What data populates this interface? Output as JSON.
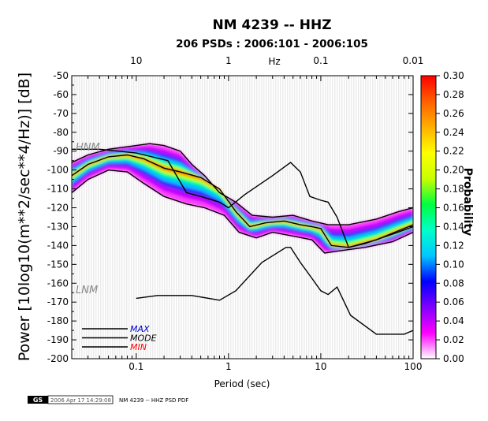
{
  "title": "NM 4239 -- HHZ",
  "subtitle": "206 PSDs : 2006:101 - 2006:105",
  "footer": {
    "logo_text": "GS",
    "timestamp": "2006 Apr 17 14:29:08",
    "caption": "NM 4239 -- HHZ PSD PDF"
  },
  "chart_data": {
    "type": "heatmap",
    "title": "NM 4239 -- HHZ",
    "subtitle": "206 PSDs : 2006:101 - 2006:105",
    "xlabel": "Period (sec)",
    "ylabel": "Power [10log10(m**2/sec**4/Hz)] [dB]",
    "x_scale": "log",
    "xlim": [
      0.02,
      100
    ],
    "ylim": [
      -200,
      -50
    ],
    "x_ticks": [
      {
        "value": 0.1,
        "label": "0.1"
      },
      {
        "value": 1,
        "label": "1"
      },
      {
        "value": 10,
        "label": "10"
      },
      {
        "value": 100,
        "label": "100"
      }
    ],
    "y_ticks": [
      -50,
      -60,
      -70,
      -80,
      -90,
      -100,
      -110,
      -120,
      -130,
      -140,
      -150,
      -160,
      -170,
      -180,
      -190,
      -200
    ],
    "top_axis": {
      "label": "Hz",
      "ticks": [
        {
          "value": 0.1,
          "label": "10"
        },
        {
          "value": 1,
          "label": "1"
        },
        {
          "value": 10,
          "label": "0.1"
        },
        {
          "value": 100,
          "label": "0.01"
        }
      ]
    },
    "colorbar": {
      "label": "Probability",
      "min": 0,
      "max": 0.3,
      "ticks": [
        "0.30",
        "0.28",
        "0.26",
        "0.24",
        "0.22",
        "0.20",
        "0.18",
        "0.16",
        "0.14",
        "0.12",
        "0.10",
        "0.08",
        "0.06",
        "0.04",
        "0.02",
        "0.00"
      ],
      "colors": [
        "#ffffff",
        "#ff00ff",
        "#8000ff",
        "#0000ff",
        "#00c8ff",
        "#00ffc8",
        "#00ff40",
        "#c8ff00",
        "#ffff00",
        "#ffb000",
        "#ff6000",
        "#ff0000"
      ]
    },
    "series": [
      {
        "name": "MAX",
        "color": "#000000",
        "label_color": "#0000cc",
        "points": [
          [
            0.02,
            -96
          ],
          [
            0.03,
            -92
          ],
          [
            0.05,
            -89
          ],
          [
            0.1,
            -87
          ],
          [
            0.14,
            -86
          ],
          [
            0.2,
            -87
          ],
          [
            0.3,
            -90
          ],
          [
            0.4,
            -97
          ],
          [
            0.55,
            -103
          ],
          [
            0.8,
            -112
          ],
          [
            1.2,
            -117
          ],
          [
            1.8,
            -124
          ],
          [
            3,
            -125
          ],
          [
            5,
            -124
          ],
          [
            8,
            -127
          ],
          [
            12,
            -129
          ],
          [
            20,
            -129
          ],
          [
            40,
            -126
          ],
          [
            70,
            -122
          ],
          [
            100,
            -120
          ]
        ]
      },
      {
        "name": "MODE",
        "color": "#000000",
        "label_color": "#000000",
        "points": [
          [
            0.02,
            -103
          ],
          [
            0.03,
            -97
          ],
          [
            0.05,
            -93
          ],
          [
            0.08,
            -92
          ],
          [
            0.12,
            -94
          ],
          [
            0.2,
            -99
          ],
          [
            0.3,
            -101
          ],
          [
            0.5,
            -104
          ],
          [
            0.8,
            -110
          ],
          [
            1.2,
            -122
          ],
          [
            1.7,
            -130
          ],
          [
            2.5,
            -128
          ],
          [
            4,
            -127
          ],
          [
            6,
            -129
          ],
          [
            8,
            -130
          ],
          [
            10,
            -131
          ],
          [
            13,
            -140
          ],
          [
            20,
            -141
          ],
          [
            40,
            -137
          ],
          [
            100,
            -129
          ]
        ]
      },
      {
        "name": "MIN",
        "color": "#000000",
        "label_color": "#ff0000",
        "points": [
          [
            0.02,
            -112
          ],
          [
            0.03,
            -105
          ],
          [
            0.05,
            -100
          ],
          [
            0.08,
            -101
          ],
          [
            0.12,
            -107
          ],
          [
            0.2,
            -114
          ],
          [
            0.35,
            -118
          ],
          [
            0.55,
            -120
          ],
          [
            0.9,
            -124
          ],
          [
            1.3,
            -133
          ],
          [
            2,
            -136
          ],
          [
            3,
            -133
          ],
          [
            5,
            -135
          ],
          [
            8,
            -137
          ],
          [
            11,
            -144
          ],
          [
            15,
            -143
          ],
          [
            30,
            -141
          ],
          [
            60,
            -138
          ],
          [
            100,
            -133
          ]
        ]
      }
    ],
    "reference_curves": [
      {
        "name": "HNM",
        "color": "#000000",
        "label_color": "#888888",
        "points": [
          [
            0.02,
            -89
          ],
          [
            0.04,
            -89
          ],
          [
            0.1,
            -91
          ],
          [
            0.22,
            -95
          ],
          [
            0.35,
            -112
          ],
          [
            0.5,
            -114
          ],
          [
            0.8,
            -117
          ],
          [
            1.0,
            -120
          ],
          [
            1.5,
            -113
          ],
          [
            3.0,
            -103
          ],
          [
            4.7,
            -96
          ],
          [
            6.0,
            -101
          ],
          [
            7.6,
            -114
          ],
          [
            10,
            -116
          ],
          [
            12,
            -117
          ],
          [
            15,
            -125
          ],
          [
            20,
            -141
          ],
          [
            30,
            -139
          ],
          [
            60,
            -134
          ],
          [
            100,
            -130
          ]
        ]
      },
      {
        "name": "LNM",
        "color": "#000000",
        "label_color": "#888888",
        "points": [
          [
            0.1,
            -168
          ],
          [
            0.17,
            -166.5
          ],
          [
            0.4,
            -166.5
          ],
          [
            0.8,
            -169
          ],
          [
            1.2,
            -164
          ],
          [
            2.3,
            -149
          ],
          [
            4.2,
            -141
          ],
          [
            4.7,
            -141
          ],
          [
            6.0,
            -149
          ],
          [
            7.9,
            -157
          ],
          [
            10,
            -164
          ],
          [
            12,
            -166
          ],
          [
            15,
            -162
          ],
          [
            21,
            -177
          ],
          [
            40,
            -187
          ],
          [
            60,
            -187
          ],
          [
            80,
            -187
          ],
          [
            100,
            -185
          ]
        ]
      }
    ],
    "legend": {
      "position": "bottom-left",
      "entries": [
        "MAX",
        "MODE",
        "MIN"
      ]
    },
    "grid": false
  }
}
